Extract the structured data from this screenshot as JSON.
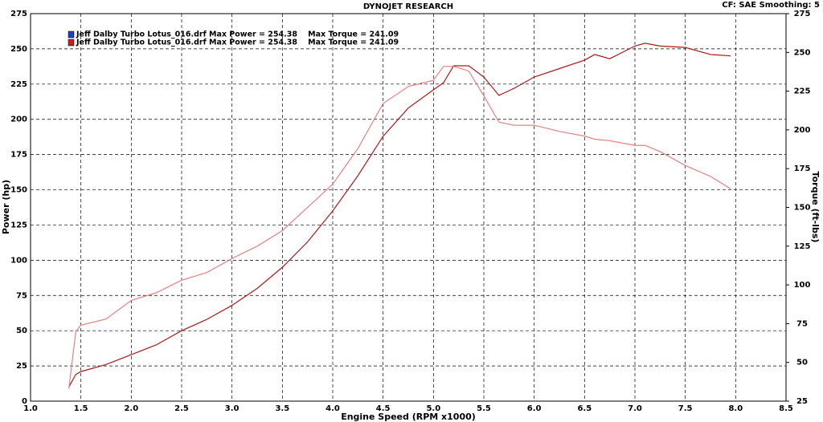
{
  "chart_data": {
    "type": "line",
    "title": "DYNOJET RESEARCH",
    "subtitle": "CF: SAE  Smoothing: 5",
    "x_label": "Engine Speed (RPM x1000)",
    "y_label": "Power (hp)",
    "y2_label": "Torque (ft-lbs)",
    "x": [
      1.38,
      1.45,
      1.5,
      1.75,
      2.0,
      2.25,
      2.5,
      2.75,
      3.0,
      3.25,
      3.5,
      3.75,
      4.0,
      4.25,
      4.5,
      4.75,
      5.0,
      5.1,
      5.2,
      5.35,
      5.5,
      5.65,
      5.8,
      6.0,
      6.25,
      6.5,
      6.6,
      6.75,
      7.0,
      7.1,
      7.25,
      7.5,
      7.75,
      7.95
    ],
    "series": [
      {
        "name": "Jeff Dalby Turbo Lotus_016.drf Max Power = 254.38    Max Torque = 241.09",
        "color": "#b01818",
        "legend_color": "#2040c0",
        "axis": "y",
        "values": [
          10,
          19,
          21,
          26,
          33,
          40,
          50,
          58,
          68,
          80,
          95,
          113,
          135,
          160,
          188,
          208,
          221,
          226,
          238,
          238,
          230,
          217,
          222,
          230,
          236,
          242,
          246,
          243,
          252,
          254,
          252,
          251,
          246,
          245
        ]
      },
      {
        "name": "Jeff Dalby Turbo Lotus_016.drf Max Power = 254.38    Max Torque = 241.09",
        "color": "#e88080",
        "legend_color": "#c02020",
        "axis": "y2",
        "values": [
          33,
          70,
          74,
          78,
          90,
          95,
          103,
          108,
          117,
          125,
          135,
          150,
          165,
          188,
          217,
          228,
          232,
          241,
          241,
          238,
          222,
          205,
          203,
          203,
          199,
          196,
          194,
          193,
          190,
          190,
          186,
          177,
          170,
          162
        ]
      }
    ],
    "xlim": [
      1.0,
      8.5
    ],
    "xticks": [
      {
        "value": 1,
        "label": "1.0"
      },
      1.5,
      {
        "value": 2,
        "label": "2.0"
      },
      2.5,
      {
        "value": 3,
        "label": "3.0"
      },
      3.5,
      {
        "value": 4,
        "label": "4.0"
      },
      4.5,
      {
        "value": 5,
        "label": "5.0"
      },
      5.5,
      {
        "value": 6,
        "label": "6.0"
      },
      6.5,
      {
        "value": 7,
        "label": "7.0"
      },
      7.5,
      {
        "value": 8,
        "label": "8.0"
      },
      8.5
    ],
    "ylim": [
      0,
      275
    ],
    "yticks": [
      0,
      25,
      50,
      75,
      100,
      125,
      150,
      175,
      200,
      225,
      250,
      275
    ],
    "y2lim": [
      25,
      275
    ],
    "y2ticks": [
      25,
      50,
      75,
      100,
      125,
      150,
      175,
      200,
      225,
      250,
      275
    ],
    "grid": true
  }
}
